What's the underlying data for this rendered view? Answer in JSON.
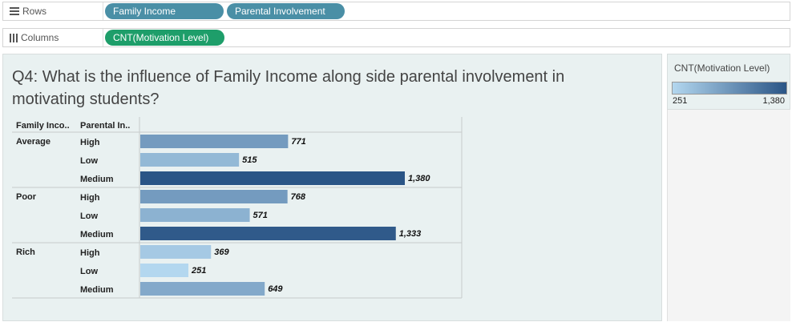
{
  "shelves": {
    "rows": {
      "label": "Rows",
      "pills": [
        "Family Income",
        "Parental Involvement"
      ]
    },
    "columns": {
      "label": "Columns",
      "pills": [
        "CNT(Motivation Level)"
      ]
    }
  },
  "colors": {
    "rows_pill": "#4a8fa6",
    "columns_pill": "#1e9e6a",
    "ramp_low": "#b3d7ef",
    "ramp_high": "#2a5586"
  },
  "title": "Q4: What is the influence of Family Income along side parental involvement in motivating students?",
  "legend": {
    "title": "CNT(Motivation Level)",
    "min_label": "251",
    "max_label": "1,380",
    "min": 251,
    "max": 1380
  },
  "chart_data": {
    "type": "bar",
    "orientation": "horizontal",
    "headers": [
      "Family Inco..",
      "Parental In.."
    ],
    "groups": [
      {
        "name": "Average",
        "rows": [
          {
            "label": "High",
            "value": 771,
            "value_label": "771"
          },
          {
            "label": "Low",
            "value": 515,
            "value_label": "515"
          },
          {
            "label": "Medium",
            "value": 1380,
            "value_label": "1,380"
          }
        ]
      },
      {
        "name": "Poor",
        "rows": [
          {
            "label": "High",
            "value": 768,
            "value_label": "768"
          },
          {
            "label": "Low",
            "value": 571,
            "value_label": "571"
          },
          {
            "label": "Medium",
            "value": 1333,
            "value_label": "1,333"
          }
        ]
      },
      {
        "name": "Rich",
        "rows": [
          {
            "label": "High",
            "value": 369,
            "value_label": "369"
          },
          {
            "label": "Low",
            "value": 251,
            "value_label": "251"
          },
          {
            "label": "Medium",
            "value": 649,
            "value_label": "649"
          }
        ]
      }
    ],
    "color_by": "value",
    "xlim": [
      0,
      1380
    ]
  }
}
